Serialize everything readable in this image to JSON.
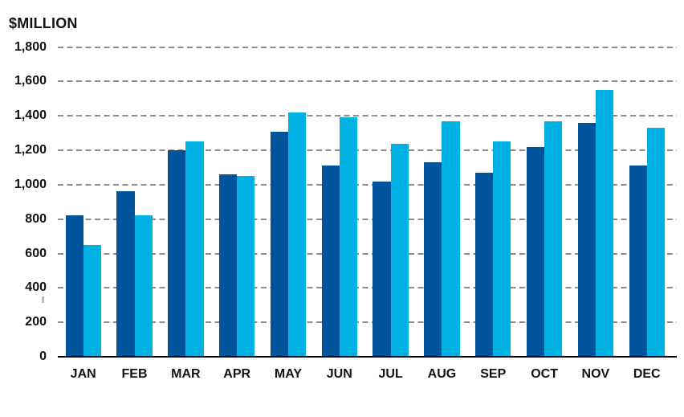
{
  "chart": {
    "y_axis_title": "$MILLION"
  },
  "chart_data": {
    "type": "bar",
    "title": "$MILLION",
    "xlabel": "",
    "ylabel": "$MILLION",
    "categories": [
      "JAN",
      "FEB",
      "MAR",
      "APR",
      "MAY",
      "JUN",
      "JUL",
      "AUG",
      "SEP",
      "OCT",
      "NOV",
      "DEC"
    ],
    "series": [
      {
        "name": "dark-blue",
        "color": "#00549C",
        "values": [
          820,
          960,
          1200,
          1060,
          1310,
          1110,
          1020,
          1130,
          1070,
          1220,
          1360,
          1110
        ]
      },
      {
        "name": "light-blue",
        "color": "#00B2E3",
        "values": [
          650,
          820,
          1250,
          1050,
          1420,
          1390,
          1240,
          1370,
          1250,
          1370,
          1550,
          1330
        ]
      }
    ],
    "ylim": [
      0,
      1800
    ],
    "ytick_interval": 200,
    "ytick_labels": [
      "0",
      "200",
      "400",
      "600",
      "800",
      "1,000",
      "1,200",
      "1,400",
      "1,600",
      "1,800"
    ],
    "grid": "horizontal-dashed",
    "legend_position": "none"
  },
  "colors": {
    "bar_dark": "#00549C",
    "bar_light": "#00B2E3",
    "gridline": "#8d8d8d",
    "axis_line": "#000000",
    "text": "#121212",
    "background": "#ffffff"
  }
}
